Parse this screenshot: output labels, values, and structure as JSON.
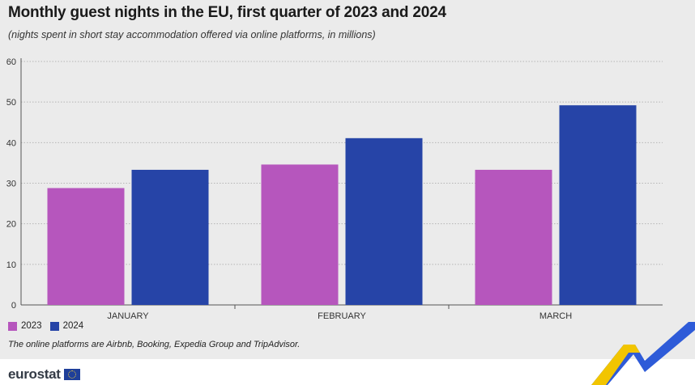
{
  "title": "Monthly guest nights in the EU, first quarter of 2023 and 2024",
  "subtitle": "(nights spent in short stay accommodation offered via online platforms, in millions)",
  "note": "The online platforms are Airbnb, Booking, Expedia Group and TripAdvisor.",
  "logo": "eurostat",
  "chart_data": {
    "type": "bar",
    "categories": [
      "JANUARY",
      "FEBRUARY",
      "MARCH"
    ],
    "series": [
      {
        "name": "2023",
        "values": [
          28.8,
          34.6,
          33.3
        ],
        "color": "#b656bd"
      },
      {
        "name": "2024",
        "values": [
          33.3,
          41.1,
          49.2
        ],
        "color": "#2644a7"
      }
    ],
    "ylim": [
      0,
      60
    ],
    "yticks": [
      "0",
      "10",
      "20",
      "30",
      "40",
      "50",
      "60"
    ],
    "grid": true,
    "legend_position": "bottom-left"
  }
}
